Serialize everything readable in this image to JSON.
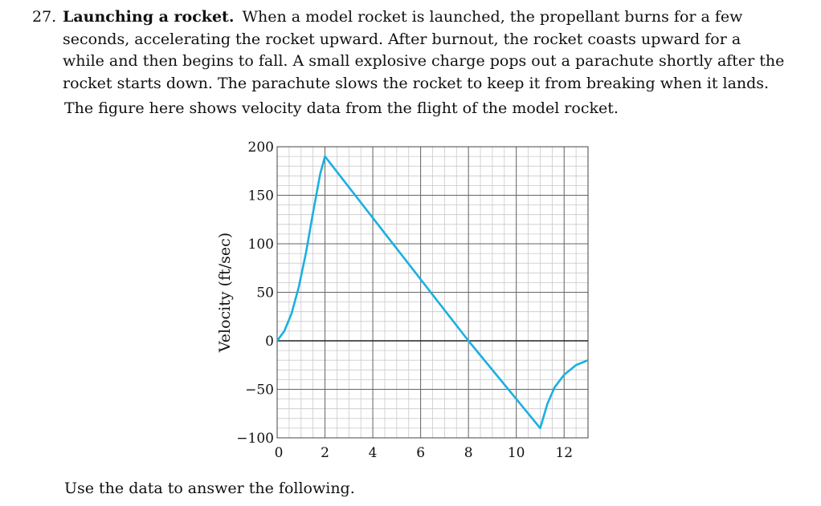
{
  "problem": {
    "number": "27.",
    "title": "Launching a rocket.",
    "body": "When a model rocket is launched, the propellant burns for a few seconds, accelerating the rocket upward. After burnout, the rocket coasts upward for a while and then begins to fall. A small explosive charge pops out a parachute shortly after the rocket starts down. The parachute slows the rocket to keep it from breaking when it lands.",
    "figure_intro": "The figure here shows velocity data from the flight of the model rocket.",
    "followup": "Use the data to answer the following."
  },
  "chart_data": {
    "type": "line",
    "ylabel": "Velocity (ft/sec)",
    "xlabel": "",
    "xlim": [
      0,
      13
    ],
    "ylim": [
      -100,
      200
    ],
    "x_ticks": [
      0,
      2,
      4,
      6,
      8,
      10,
      12
    ],
    "x_tick_labels": [
      "0",
      "2",
      "4",
      "6",
      "8",
      "10",
      "12"
    ],
    "y_ticks": [
      -100,
      -50,
      0,
      50,
      100,
      150,
      200
    ],
    "y_tick_labels": [
      "−100",
      "−50",
      "0",
      "50",
      "100",
      "150",
      "200"
    ],
    "grid": true,
    "line_color": "#1ab0e0",
    "series": [
      {
        "x": [
          0,
          0.3,
          0.6,
          0.9,
          1.2,
          1.5,
          1.8,
          2.0,
          8.0,
          11.0,
          11.3,
          11.6,
          12.0,
          12.5,
          13.0
        ],
        "y": [
          0,
          10,
          28,
          55,
          90,
          132,
          172,
          190,
          0,
          -90,
          -65,
          -48,
          -35,
          -25,
          -20
        ]
      }
    ]
  }
}
